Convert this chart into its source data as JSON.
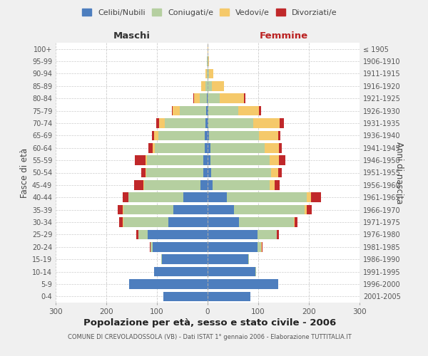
{
  "age_groups": [
    "0-4",
    "5-9",
    "10-14",
    "15-19",
    "20-24",
    "25-29",
    "30-34",
    "35-39",
    "40-44",
    "45-49",
    "50-54",
    "55-59",
    "60-64",
    "65-69",
    "70-74",
    "75-79",
    "80-84",
    "85-89",
    "90-94",
    "95-99",
    "100+"
  ],
  "birth_years": [
    "2001-2005",
    "1996-2000",
    "1991-1995",
    "1986-1990",
    "1981-1985",
    "1976-1980",
    "1971-1975",
    "1966-1970",
    "1961-1965",
    "1956-1960",
    "1951-1955",
    "1946-1950",
    "1941-1945",
    "1936-1940",
    "1931-1935",
    "1926-1930",
    "1921-1925",
    "1916-1920",
    "1911-1915",
    "1906-1910",
    "≤ 1905"
  ],
  "maschi_celibi": [
    88,
    155,
    105,
    90,
    108,
    118,
    78,
    68,
    48,
    14,
    9,
    8,
    6,
    5,
    4,
    3,
    1,
    0,
    0,
    0,
    0
  ],
  "maschi_coniugati": [
    0,
    0,
    0,
    1,
    4,
    18,
    88,
    98,
    108,
    112,
    112,
    112,
    98,
    92,
    80,
    52,
    14,
    4,
    2,
    1,
    0
  ],
  "maschi_vedovi": [
    0,
    0,
    0,
    0,
    0,
    1,
    1,
    1,
    1,
    1,
    2,
    3,
    5,
    8,
    12,
    14,
    12,
    8,
    2,
    0,
    0
  ],
  "maschi_divorziati": [
    0,
    0,
    0,
    0,
    2,
    4,
    8,
    10,
    10,
    18,
    8,
    20,
    8,
    5,
    5,
    2,
    1,
    0,
    0,
    0,
    0
  ],
  "femmine_celibi": [
    84,
    140,
    95,
    80,
    98,
    98,
    62,
    52,
    38,
    10,
    7,
    5,
    5,
    3,
    2,
    2,
    0,
    0,
    0,
    0,
    0
  ],
  "femmine_coniugati": [
    0,
    0,
    1,
    2,
    8,
    38,
    108,
    140,
    158,
    112,
    118,
    118,
    108,
    98,
    88,
    58,
    24,
    8,
    3,
    1,
    0
  ],
  "femmine_vedovi": [
    0,
    0,
    0,
    0,
    1,
    1,
    2,
    4,
    8,
    10,
    14,
    18,
    28,
    38,
    52,
    42,
    48,
    24,
    8,
    2,
    1
  ],
  "femmine_divorziati": [
    0,
    0,
    0,
    0,
    2,
    4,
    6,
    10,
    20,
    10,
    8,
    12,
    5,
    5,
    8,
    3,
    2,
    1,
    0,
    0,
    0
  ],
  "colors": {
    "celibi": "#4d7ebe",
    "coniugati": "#b5cfa0",
    "vedovi": "#f5c96a",
    "divorziati": "#c0282a"
  },
  "title": "Popolazione per età, sesso e stato civile - 2006",
  "subtitle": "COMUNE DI CREVOLADOSSOLA (VB) - Dati ISTAT 1° gennaio 2006 - Elaborazione TUTTITALIA.IT",
  "ylabel_left": "Fasce di età",
  "ylabel_right": "Anni di nascita",
  "xlim": 300,
  "bg_color": "#f0f0f0",
  "plot_bg_color": "#ffffff",
  "grid_color": "#cccccc"
}
